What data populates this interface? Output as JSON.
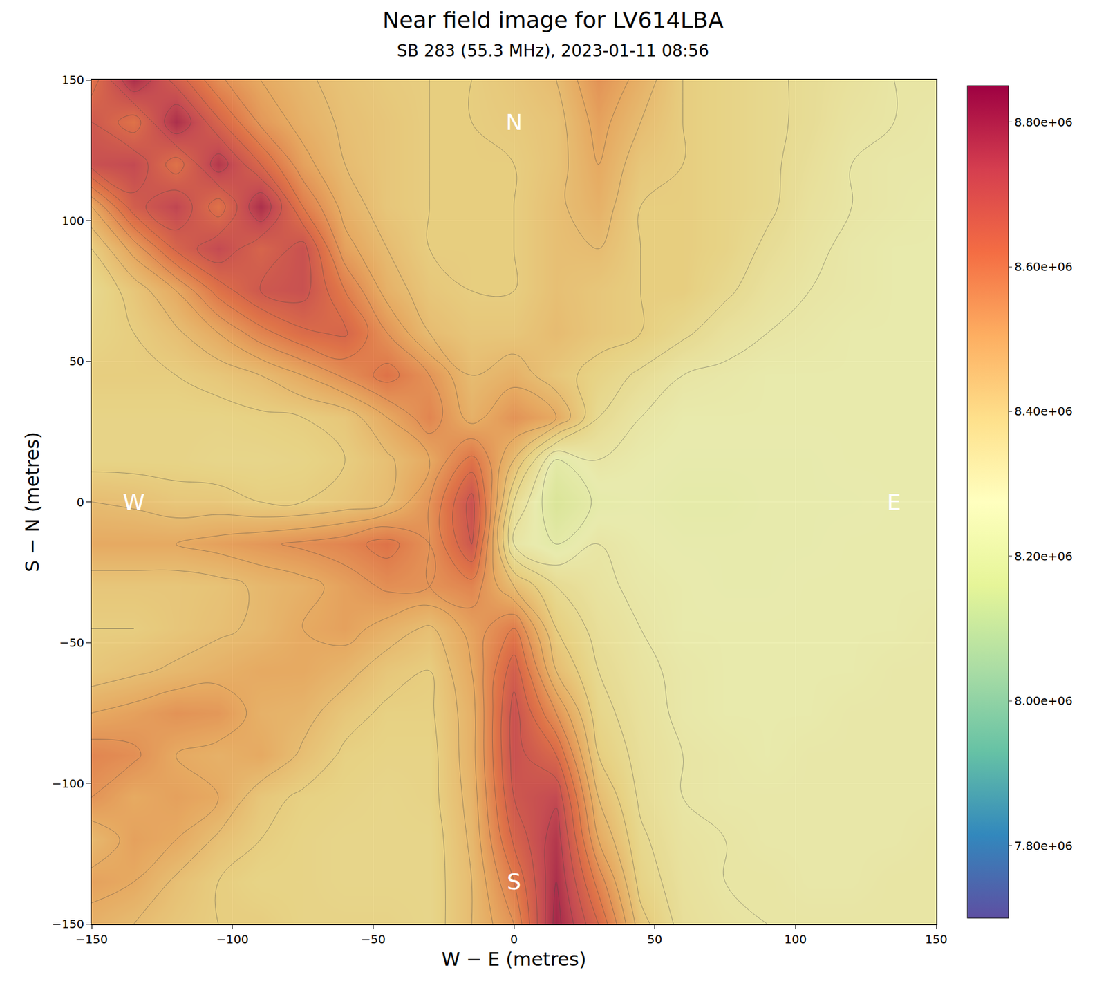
{
  "chart_data": {
    "type": "heatmap",
    "title": "Near field image for LV614LBA",
    "subtitle": "SB 283 (55.3 MHz), 2023-01-11 08:56",
    "x_label": "W − E (metres)",
    "y_label": "S − N (metres)",
    "x": [
      -150,
      -135,
      -120,
      -105,
      -90,
      -75,
      -60,
      -45,
      -30,
      -15,
      0,
      15,
      30,
      45,
      60,
      75,
      90,
      105,
      120,
      135,
      150
    ],
    "y": [
      -150,
      -135,
      -120,
      -105,
      -90,
      -75,
      -60,
      -45,
      -30,
      -15,
      0,
      15,
      30,
      45,
      60,
      75,
      90,
      105,
      120,
      135,
      150
    ],
    "cells": [
      [
        8480000.0,
        8450000.0,
        8420000.0,
        8400000.0,
        8400000.0,
        8380000.0,
        8380000.0,
        8380000.0,
        8370000.0,
        8450000.0,
        8550000.0,
        8820000.0,
        8650000.0,
        8420000.0,
        8330000.0,
        8310000.0,
        8300000.0,
        8300000.0,
        8300000.0,
        8300000.0,
        8300000.0
      ],
      [
        8520000.0,
        8500000.0,
        8440000.0,
        8400000.0,
        8380000.0,
        8380000.0,
        8370000.0,
        8370000.0,
        8370000.0,
        8450000.0,
        8600000.0,
        8800000.0,
        8580000.0,
        8380000.0,
        8320000.0,
        8300000.0,
        8300000.0,
        8290000.0,
        8290000.0,
        8300000.0,
        8300000.0
      ],
      [
        8460000.0,
        8520000.0,
        8500000.0,
        8440000.0,
        8400000.0,
        8380000.0,
        8370000.0,
        8370000.0,
        8370000.0,
        8460000.0,
        8660000.0,
        8780000.0,
        8500000.0,
        8360000.0,
        8310000.0,
        8300000.0,
        8290000.0,
        8290000.0,
        8290000.0,
        8290000.0,
        8300000.0
      ],
      [
        8550000.0,
        8500000.0,
        8520000.0,
        8500000.0,
        8420000.0,
        8390000.0,
        8380000.0,
        8370000.0,
        8380000.0,
        8470000.0,
        8700000.0,
        8740000.0,
        8450000.0,
        8340000.0,
        8300000.0,
        8290000.0,
        8290000.0,
        8290000.0,
        8290000.0,
        8290000.0,
        8290000.0
      ],
      [
        8580000.0,
        8560000.0,
        8500000.0,
        8480000.0,
        8500000.0,
        8440000.0,
        8390000.0,
        8380000.0,
        8380000.0,
        8480000.0,
        8720000.0,
        8650000.0,
        8400000.0,
        8330000.0,
        8300000.0,
        8290000.0,
        8280000.0,
        8290000.0,
        8290000.0,
        8290000.0,
        8290000.0
      ],
      [
        8500000.0,
        8520000.0,
        8550000.0,
        8540000.0,
        8480000.0,
        8470000.0,
        8420000.0,
        8390000.0,
        8390000.0,
        8480000.0,
        8720000.0,
        8550000.0,
        8370000.0,
        8320000.0,
        8290000.0,
        8280000.0,
        8280000.0,
        8280000.0,
        8290000.0,
        8290000.0,
        8290000.0
      ],
      [
        8420000.0,
        8440000.0,
        8460000.0,
        8480000.0,
        8500000.0,
        8500000.0,
        8470000.0,
        8420000.0,
        8400000.0,
        8500000.0,
        8680000.0,
        8450000.0,
        8350000.0,
        8310000.0,
        8290000.0,
        8280000.0,
        8280000.0,
        8280000.0,
        8280000.0,
        8290000.0,
        8290000.0
      ],
      [
        8400000.0,
        8400000.0,
        8420000.0,
        8440000.0,
        8460000.0,
        8500000.0,
        8520000.0,
        8480000.0,
        8440000.0,
        8520000.0,
        8600000.0,
        8400000.0,
        8330000.0,
        8300000.0,
        8280000.0,
        8280000.0,
        8280000.0,
        8280000.0,
        8280000.0,
        8280000.0,
        8290000.0
      ],
      [
        8420000.0,
        8420000.0,
        8420000.0,
        8430000.0,
        8460000.0,
        8480000.0,
        8520000.0,
        8560000.0,
        8550000.0,
        8580000.0,
        8450000.0,
        8350000.0,
        8310000.0,
        8290000.0,
        8280000.0,
        8270000.0,
        8270000.0,
        8280000.0,
        8280000.0,
        8280000.0,
        8280000.0
      ],
      [
        8500000.0,
        8500000.0,
        8500000.0,
        8520000.0,
        8540000.0,
        8560000.0,
        8580000.0,
        8620000.0,
        8550000.0,
        8700000.0,
        8300000.0,
        8250000.0,
        8300000.0,
        8280000.0,
        8270000.0,
        8270000.0,
        8270000.0,
        8270000.0,
        8280000.0,
        8280000.0,
        8280000.0
      ],
      [
        8450000.0,
        8440000.0,
        8420000.0,
        8420000.0,
        8400000.0,
        8400000.0,
        8420000.0,
        8450000.0,
        8550000.0,
        8720000.0,
        8350000.0,
        8200000.0,
        8260000.0,
        8270000.0,
        8260000.0,
        8260000.0,
        8270000.0,
        8270000.0,
        8270000.0,
        8280000.0,
        8280000.0
      ],
      [
        8380000.0,
        8380000.0,
        8380000.0,
        8370000.0,
        8370000.0,
        8380000.0,
        8400000.0,
        8440000.0,
        8500000.0,
        8620000.0,
        8450000.0,
        8250000.0,
        8300000.0,
        8280000.0,
        8270000.0,
        8270000.0,
        8270000.0,
        8270000.0,
        8280000.0,
        8280000.0,
        8280000.0
      ],
      [
        8380000.0,
        8380000.0,
        8380000.0,
        8380000.0,
        8390000.0,
        8400000.0,
        8420000.0,
        8500000.0,
        8580000.0,
        8480000.0,
        8550000.0,
        8500000.0,
        8350000.0,
        8300000.0,
        8280000.0,
        8280000.0,
        8280000.0,
        8280000.0,
        8280000.0,
        8280000.0,
        8280000.0
      ],
      [
        8400000.0,
        8400000.0,
        8400000.0,
        8420000.0,
        8450000.0,
        8500000.0,
        8560000.0,
        8620000.0,
        8550000.0,
        8450000.0,
        8480000.0,
        8420000.0,
        8380000.0,
        8340000.0,
        8300000.0,
        8290000.0,
        8280000.0,
        8280000.0,
        8280000.0,
        8280000.0,
        8280000.0
      ],
      [
        8380000.0,
        8400000.0,
        8440000.0,
        8500000.0,
        8580000.0,
        8640000.0,
        8660000.0,
        8550000.0,
        8450000.0,
        8420000.0,
        8420000.0,
        8450000.0,
        8420000.0,
        8400000.0,
        8360000.0,
        8320000.0,
        8300000.0,
        8290000.0,
        8280000.0,
        8280000.0,
        8280000.0
      ],
      [
        8360000.0,
        8420000.0,
        8500000.0,
        8620000.0,
        8700000.0,
        8720000.0,
        8600000.0,
        8480000.0,
        8420000.0,
        8400000.0,
        8400000.0,
        8440000.0,
        8420000.0,
        8400000.0,
        8400000.0,
        8360000.0,
        8320000.0,
        8300000.0,
        8290000.0,
        8280000.0,
        8280000.0
      ],
      [
        8400000.0,
        8520000.0,
        8660000.0,
        8740000.0,
        8660000.0,
        8720000.0,
        8520000.0,
        8450000.0,
        8400000.0,
        8400000.0,
        8400000.0,
        8440000.0,
        8450000.0,
        8400000.0,
        8400000.0,
        8380000.0,
        8340000.0,
        8310000.0,
        8290000.0,
        8280000.0,
        8280000.0
      ],
      [
        8500000.0,
        8680000.0,
        8750000.0,
        8620000.0,
        8800000.0,
        8600000.0,
        8480000.0,
        8420000.0,
        8400000.0,
        8400000.0,
        8400000.0,
        8440000.0,
        8480000.0,
        8400000.0,
        8400000.0,
        8380000.0,
        8360000.0,
        8320000.0,
        8300000.0,
        8290000.0,
        8280000.0
      ],
      [
        8720000.0,
        8740000.0,
        8620000.0,
        8780000.0,
        8650000.0,
        8520000.0,
        8450000.0,
        8420000.0,
        8400000.0,
        8400000.0,
        8400000.0,
        8430000.0,
        8500000.0,
        8420000.0,
        8400000.0,
        8380000.0,
        8360000.0,
        8330000.0,
        8300000.0,
        8290000.0,
        8290000.0
      ],
      [
        8700000.0,
        8620000.0,
        8800000.0,
        8660000.0,
        8540000.0,
        8480000.0,
        8440000.0,
        8420000.0,
        8400000.0,
        8400000.0,
        8410000.0,
        8430000.0,
        8520000.0,
        8450000.0,
        8400000.0,
        8380000.0,
        8360000.0,
        8340000.0,
        8310000.0,
        8300000.0,
        8290000.0
      ],
      [
        8620000.0,
        8800000.0,
        8680000.0,
        8560000.0,
        8500000.0,
        8460000.0,
        8430000.0,
        8410000.0,
        8400000.0,
        8400000.0,
        8420000.0,
        8450000.0,
        8550000.0,
        8480000.0,
        8400000.0,
        8380000.0,
        8360000.0,
        8340000.0,
        8320000.0,
        8300000.0,
        8300000.0
      ]
    ],
    "xlim": [
      -150,
      150
    ],
    "ylim": [
      -150,
      150
    ],
    "xticks": [
      {
        "value": -150,
        "label": "−150"
      },
      {
        "value": -100,
        "label": "−100"
      },
      {
        "value": -50,
        "label": "−50"
      },
      0,
      50,
      100,
      150
    ],
    "yticks": [
      {
        "value": -150,
        "label": "−150"
      },
      {
        "value": -100,
        "label": "−100"
      },
      {
        "value": -50,
        "label": "−50"
      },
      0,
      50,
      100,
      150
    ],
    "colorbar_range": [
      7700000.0,
      8850000.0
    ],
    "colorbar_ticks": [
      {
        "value": 7800000.0,
        "label": "7.80e+06"
      },
      {
        "value": 8000000.0,
        "label": "8.00e+06"
      },
      {
        "value": 8200000.0,
        "label": "8.20e+06"
      },
      {
        "value": 8400000.0,
        "label": "8.40e+06"
      },
      {
        "value": 8600000.0,
        "label": "8.60e+06"
      },
      {
        "value": 8800000.0,
        "label": "8.80e+06"
      }
    ],
    "annotations": [
      {
        "text": "N",
        "x": 0,
        "y": 135
      },
      {
        "text": "S",
        "x": 0,
        "y": -135
      },
      {
        "text": "W",
        "x": -135,
        "y": 0
      },
      {
        "text": "E",
        "x": 135,
        "y": 0
      }
    ],
    "grid": true
  }
}
